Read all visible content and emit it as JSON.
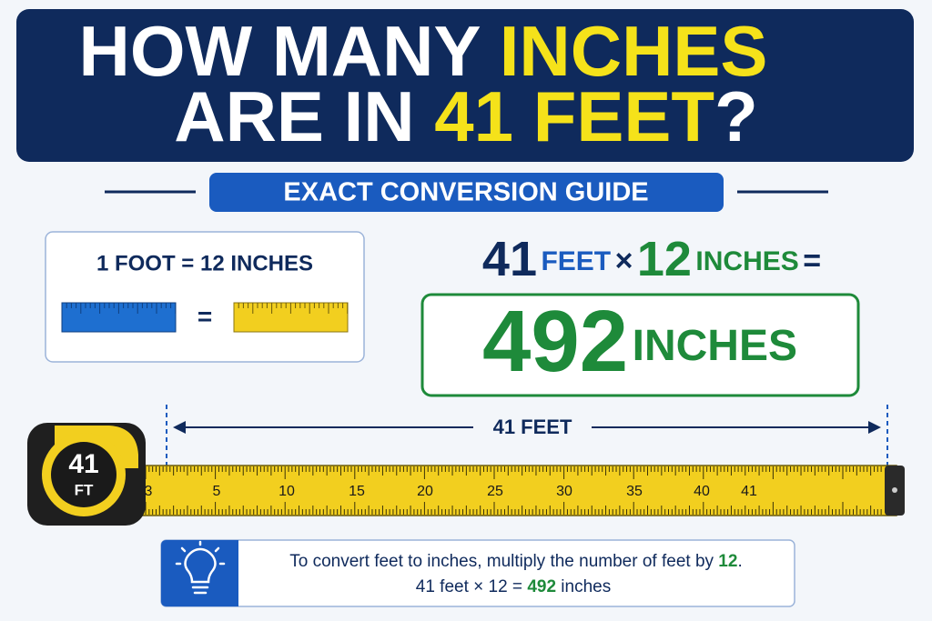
{
  "title": {
    "line1_a": "HOW MANY",
    "line1_b": "INCHES",
    "line2_a": "ARE IN",
    "line2_b": "41 FEET",
    "line2_c": "?"
  },
  "subtitle": "EXACT CONVERSION GUIDE",
  "fact_box": {
    "text": "1 FOOT = 12 INCHES",
    "equals": "="
  },
  "equation": {
    "feet": "41",
    "feet_unit": "FEET",
    "times": "×",
    "factor": "12",
    "factor_unit": "INCHES",
    "equals": "="
  },
  "result": {
    "value": "492",
    "unit": "INCHES"
  },
  "tape": {
    "length_label": "41 FEET",
    "case_number": "41",
    "case_unit": "FT",
    "marks": [
      "3",
      "5",
      "10",
      "15",
      "20",
      "25",
      "30",
      "35",
      "40",
      "41"
    ]
  },
  "tip": {
    "line1_text": "To convert feet to inches, multiply the number of feet by",
    "line1_factor": "12",
    "line1_end": ".",
    "line2_text": "41 feet × 12 =",
    "line2_result": "492",
    "line2_end": "inches"
  }
}
